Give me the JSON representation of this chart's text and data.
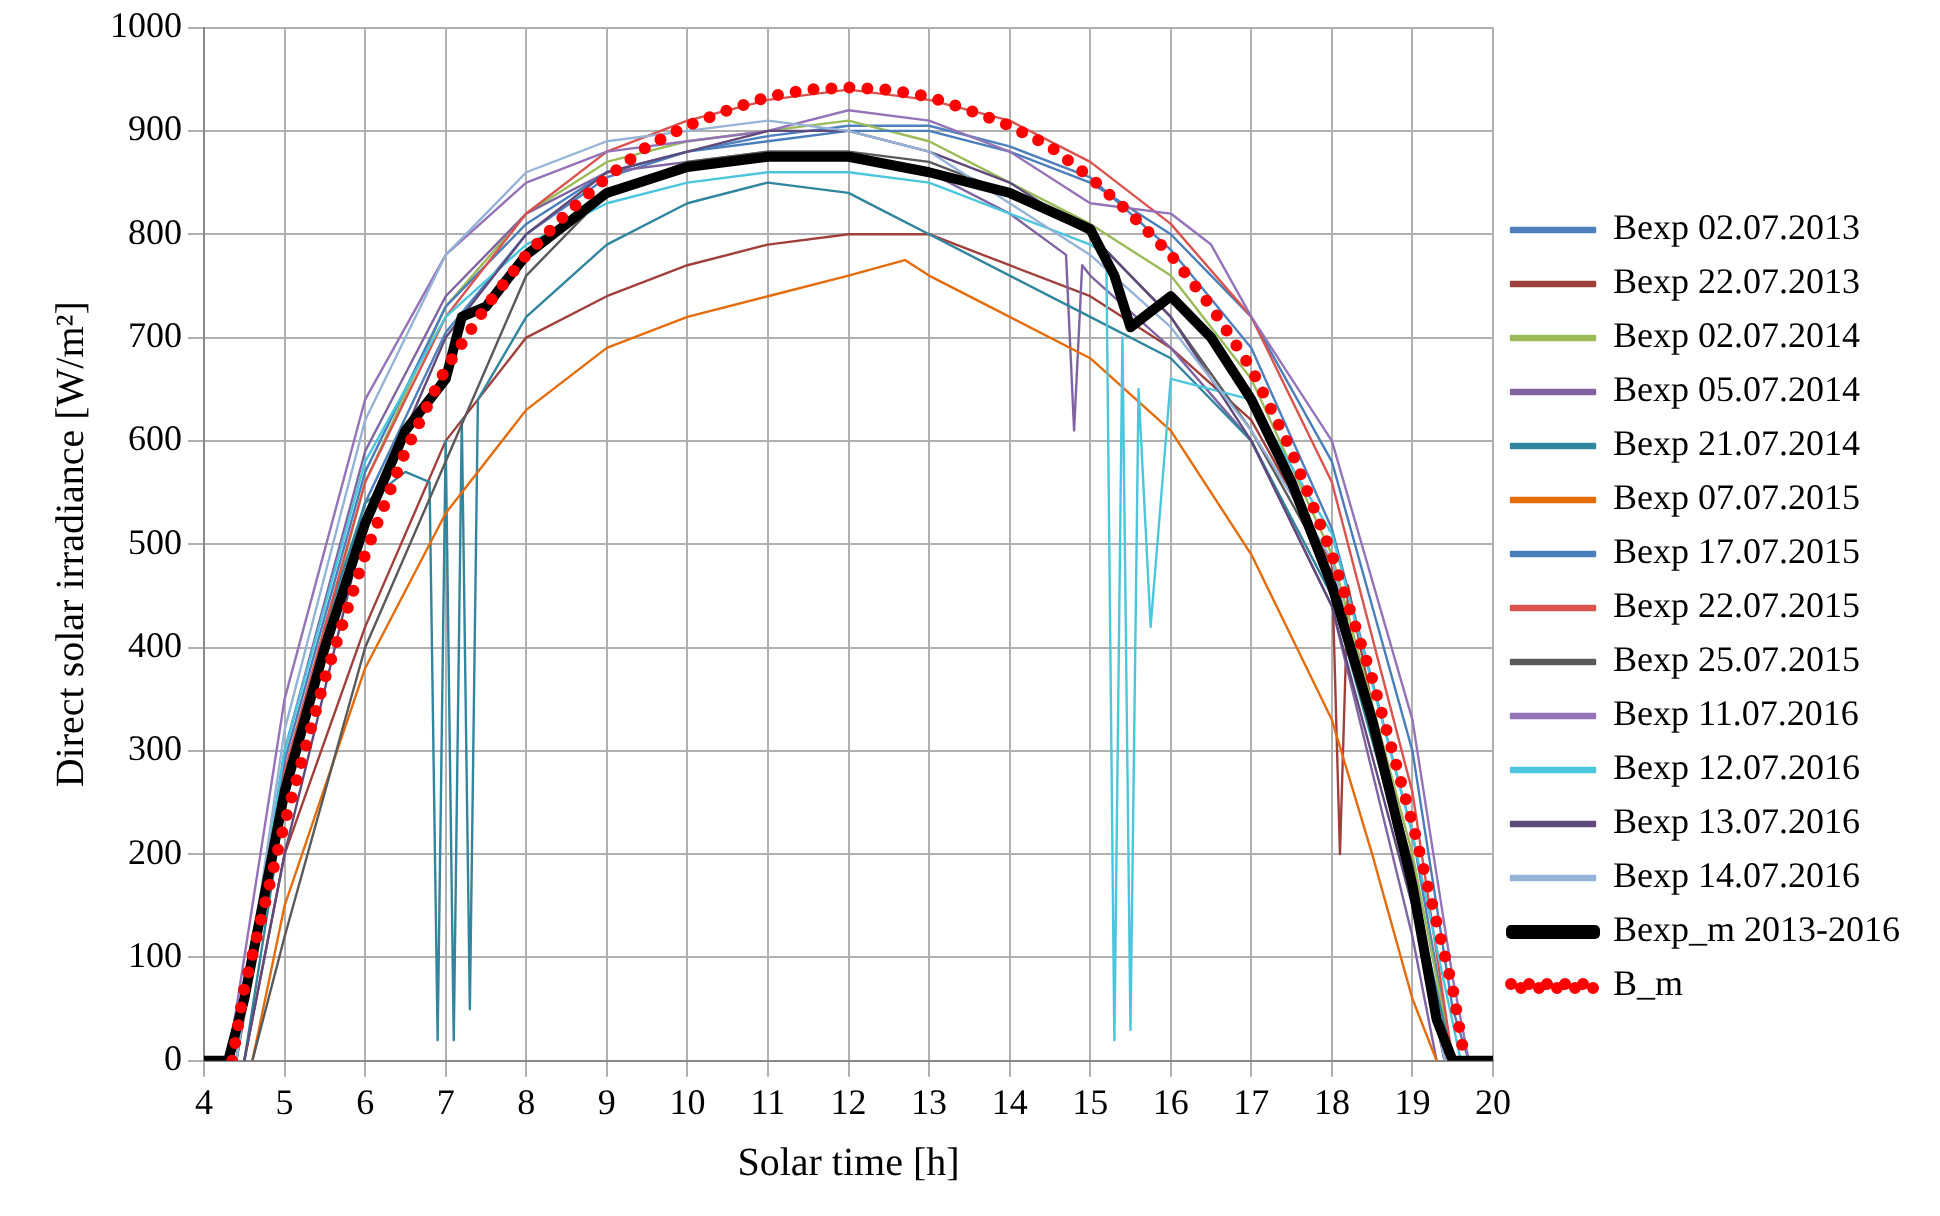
{
  "chart_data": {
    "type": "line",
    "xlabel": "Solar time [h]",
    "ylabel": "Direct solar irradiance [W/m²]",
    "xlim": [
      4,
      20
    ],
    "xticks": [
      4,
      5,
      6,
      7,
      8,
      9,
      10,
      11,
      12,
      13,
      14,
      15,
      16,
      17,
      18,
      19,
      20
    ],
    "ylim": [
      0,
      1000
    ],
    "yticks": [
      0,
      100,
      200,
      300,
      400,
      500,
      600,
      700,
      800,
      900,
      1000
    ],
    "grid": true,
    "legend": "right",
    "line_style": "solid",
    "marker": "none",
    "series": [
      {
        "name": "Bexp 02.07.2013",
        "color": "#4f81bd",
        "x": [
          4.4,
          5,
          6,
          7,
          8,
          9,
          10,
          11,
          12,
          13,
          14,
          15,
          16,
          17,
          18,
          19,
          19.5
        ],
        "values": [
          0,
          260,
          540,
          705,
          800,
          855,
          880,
          895,
          905,
          905,
          885,
          855,
          785,
          690,
          515,
          220,
          0
        ]
      },
      {
        "name": "Bexp 22.07.2013",
        "color": "#a0403d",
        "x": [
          4.5,
          5,
          6,
          7,
          8,
          9,
          10,
          11,
          12,
          13,
          14,
          15,
          16,
          17,
          18,
          18.1,
          18.2,
          19,
          19.4
        ],
        "values": [
          0,
          200,
          420,
          600,
          700,
          740,
          770,
          790,
          800,
          800,
          770,
          740,
          690,
          620,
          480,
          200,
          460,
          150,
          0
        ]
      },
      {
        "name": "Bexp 02.07.2014",
        "color": "#9bbb59",
        "x": [
          4.4,
          5,
          6,
          7,
          8,
          9,
          10,
          11,
          12,
          13,
          14,
          15,
          16,
          17,
          18,
          19,
          19.5
        ],
        "values": [
          0,
          270,
          560,
          730,
          820,
          870,
          890,
          900,
          910,
          890,
          850,
          810,
          760,
          660,
          490,
          200,
          0
        ]
      },
      {
        "name": "Bexp 05.07.2014",
        "color": "#8064a2",
        "x": [
          4.4,
          5,
          6,
          7,
          8,
          9,
          10,
          11,
          12,
          13,
          14,
          14.7,
          14.8,
          14.9,
          15,
          16,
          17,
          18,
          19,
          19.3
        ],
        "values": [
          0,
          300,
          590,
          740,
          820,
          860,
          870,
          880,
          880,
          860,
          820,
          780,
          610,
          770,
          760,
          690,
          600,
          440,
          120,
          0
        ]
      },
      {
        "name": "Bexp 21.07.2014",
        "color": "#31859c",
        "x": [
          4.5,
          5,
          5.5,
          6,
          6.5,
          6.8,
          6.9,
          7,
          7.1,
          7.2,
          7.3,
          7.4,
          8,
          9,
          10,
          11,
          12,
          12.5,
          13,
          14,
          15,
          16,
          17,
          18,
          19,
          19.5
        ],
        "values": [
          0,
          250,
          420,
          540,
          570,
          560,
          20,
          600,
          20,
          620,
          50,
          640,
          720,
          790,
          830,
          850,
          840,
          820,
          800,
          760,
          720,
          680,
          600,
          450,
          170,
          0
        ]
      },
      {
        "name": "Bexp 07.07.2015",
        "color": "#e46c0a",
        "x": [
          4.6,
          5,
          6,
          7,
          8,
          9,
          10,
          11,
          12,
          12.7,
          13,
          14,
          15,
          16,
          17,
          18,
          18.5,
          19,
          19.3
        ],
        "values": [
          0,
          150,
          380,
          530,
          630,
          690,
          720,
          740,
          760,
          775,
          760,
          720,
          680,
          610,
          490,
          330,
          200,
          60,
          0
        ]
      },
      {
        "name": "Bexp 17.07.2015",
        "color": "#4a7ebb",
        "x": [
          4.4,
          5,
          6,
          7,
          8,
          9,
          10,
          11,
          12,
          13,
          14,
          15,
          16,
          17,
          18,
          19,
          19.5,
          19.7
        ],
        "values": [
          0,
          290,
          570,
          730,
          810,
          860,
          880,
          890,
          900,
          900,
          880,
          850,
          800,
          720,
          580,
          300,
          50,
          0
        ]
      },
      {
        "name": "Bexp 22.07.2015",
        "color": "#d9534f",
        "x": [
          4.4,
          5,
          6,
          7,
          8,
          9,
          10,
          11,
          12,
          13,
          14,
          15,
          16,
          17,
          18,
          19,
          19.5
        ],
        "values": [
          0,
          280,
          560,
          720,
          820,
          880,
          910,
          930,
          940,
          930,
          910,
          870,
          810,
          720,
          560,
          260,
          0
        ]
      },
      {
        "name": "Bexp 25.07.2015",
        "color": "#595959",
        "x": [
          4.6,
          5,
          6,
          7,
          8,
          9,
          10,
          11,
          12,
          13,
          14,
          15,
          16,
          17,
          18,
          19,
          19.4
        ],
        "values": [
          0,
          120,
          400,
          580,
          760,
          840,
          870,
          880,
          880,
          870,
          840,
          800,
          720,
          610,
          470,
          190,
          0
        ]
      },
      {
        "name": "Bexp 11.07.2016",
        "color": "#9473b8",
        "x": [
          4.3,
          5,
          6,
          7,
          8,
          9,
          10,
          11,
          12,
          13,
          14,
          15,
          16,
          16.5,
          17,
          18,
          19,
          19.5,
          19.7
        ],
        "values": [
          0,
          350,
          640,
          780,
          850,
          880,
          890,
          900,
          920,
          910,
          880,
          830,
          820,
          790,
          720,
          600,
          330,
          80,
          0
        ]
      },
      {
        "name": "Bexp 12.07.2016",
        "color": "#4bc6dc",
        "x": [
          4.4,
          5,
          6,
          7,
          8,
          9,
          10,
          11,
          12,
          13,
          14,
          15,
          15.2,
          15.3,
          15.4,
          15.5,
          15.6,
          15.75,
          16,
          17,
          18,
          19,
          19.6
        ],
        "values": [
          0,
          300,
          580,
          720,
          790,
          830,
          850,
          860,
          860,
          850,
          820,
          790,
          780,
          20,
          700,
          30,
          650,
          420,
          660,
          640,
          510,
          220,
          0
        ]
      },
      {
        "name": "Bexp 13.07.2016",
        "color": "#604a7b",
        "x": [
          4.5,
          5,
          6,
          7,
          8,
          9,
          10,
          11,
          12,
          13,
          14,
          15,
          16,
          17,
          18,
          19,
          19.4
        ],
        "values": [
          0,
          200,
          520,
          700,
          800,
          860,
          880,
          900,
          900,
          880,
          850,
          800,
          720,
          600,
          440,
          150,
          0
        ]
      },
      {
        "name": "Bexp 14.07.2016",
        "color": "#95b3d7",
        "x": [
          4.4,
          5,
          6,
          7,
          8,
          9,
          10,
          11,
          12,
          13,
          14,
          15,
          16,
          17,
          18,
          19,
          19.4
        ],
        "values": [
          0,
          320,
          620,
          780,
          860,
          890,
          900,
          910,
          900,
          880,
          830,
          780,
          710,
          610,
          485,
          160,
          0
        ]
      },
      {
        "name": "Bexp_m 2013-2016",
        "color": "#000000",
        "x": [
          4,
          4.3,
          4.5,
          5,
          5.5,
          6,
          6.5,
          6.8,
          7,
          7.2,
          7.5,
          8,
          9,
          10,
          11,
          12,
          13,
          14,
          15,
          15.3,
          15.5,
          16,
          16.5,
          17,
          17.5,
          18,
          18.5,
          19,
          19.3,
          19.5,
          20
        ],
        "values": [
          0,
          0,
          60,
          260,
          400,
          520,
          610,
          640,
          660,
          720,
          730,
          780,
          840,
          865,
          875,
          875,
          860,
          840,
          805,
          760,
          710,
          740,
          700,
          640,
          560,
          460,
          330,
          170,
          40,
          0,
          0
        ]
      },
      {
        "name": "B_m",
        "color": "#ff0000",
        "line_style": "dotted",
        "x": [
          4.35,
          4.5,
          5,
          5.5,
          6,
          6.5,
          7,
          7.5,
          8,
          8.5,
          9,
          9.5,
          10,
          10.5,
          11,
          11.5,
          12,
          12.5,
          13,
          13.5,
          14,
          14.5,
          15,
          15.5,
          16,
          16.5,
          17,
          17.5,
          18,
          18.5,
          19,
          19.5,
          19.65
        ],
        "values": [
          0,
          70,
          230,
          370,
          490,
          590,
          670,
          730,
          780,
          820,
          855,
          885,
          905,
          920,
          933,
          940,
          942,
          940,
          933,
          920,
          905,
          885,
          855,
          820,
          780,
          730,
          670,
          590,
          490,
          370,
          230,
          70,
          0
        ]
      }
    ]
  }
}
